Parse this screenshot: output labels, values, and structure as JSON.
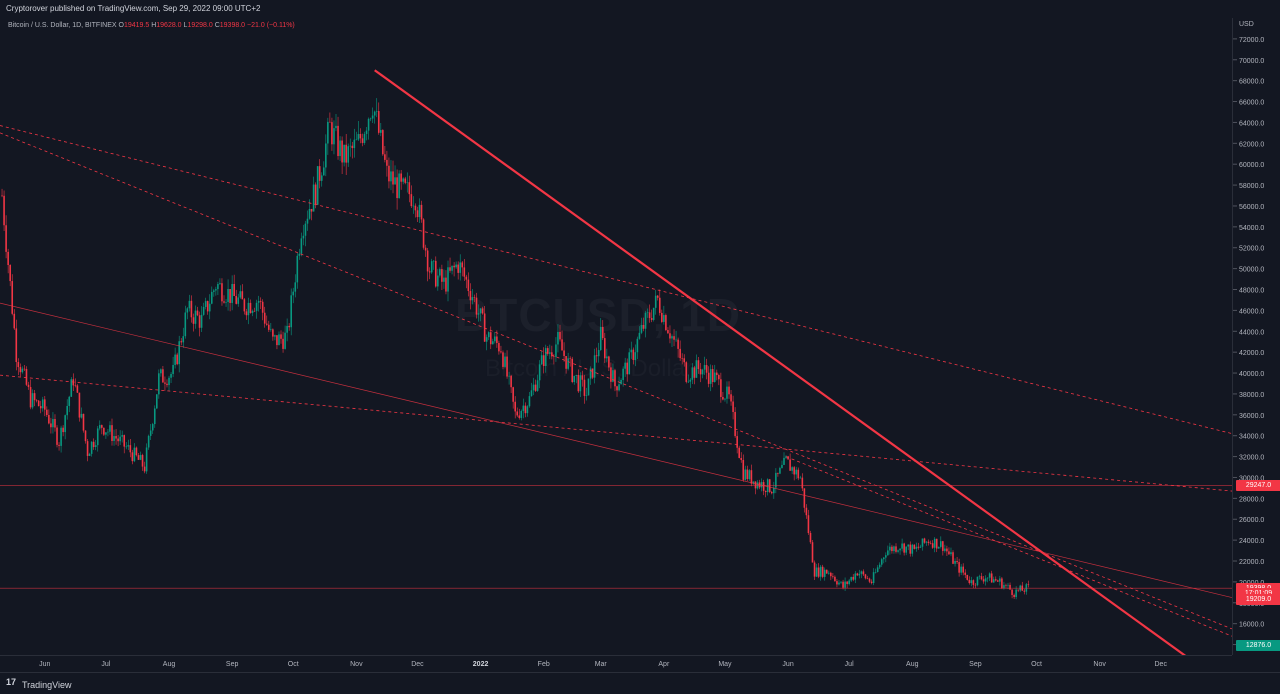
{
  "header": {
    "publisher_line": "Cryptorover published on TradingView.com, Sep 29, 2022 09:00 UTC+2"
  },
  "footer": {
    "brand": "TradingView",
    "logo_glyph": "17"
  },
  "symbol_legend": {
    "name": "Bitcoin / U.S. Dollar, 1D, BITFINEX",
    "open_label": "O",
    "open": "19419.5",
    "high_label": "H",
    "high": "19628.0",
    "low_label": "L",
    "low": "19298.0",
    "close_label": "C",
    "close": "19398.0",
    "change": "−21.0 (−0.11%)"
  },
  "watermark": {
    "symbol": "BTCUSD, 1D",
    "name": "Bitcoin / U.S. Dollar"
  },
  "chart_data": {
    "type": "candlestick",
    "currency": "USD",
    "y_range": [
      13000,
      74000
    ],
    "y_ticks": [
      14000,
      16000,
      18000,
      20000,
      22000,
      24000,
      26000,
      28000,
      30000,
      32000,
      34000,
      36000,
      38000,
      40000,
      42000,
      44000,
      46000,
      48000,
      50000,
      52000,
      54000,
      56000,
      58000,
      60000,
      62000,
      64000,
      66000,
      68000,
      70000,
      72000
    ],
    "x_ticks": [
      "Jun",
      "Jul",
      "Aug",
      "Sep",
      "Oct",
      "Nov",
      "Dec",
      "2022",
      "Feb",
      "Mar",
      "Apr",
      "May",
      "Jun",
      "Jul",
      "Aug",
      "Sep",
      "Oct",
      "Nov",
      "Dec"
    ],
    "x_range": [
      "2021-05-10",
      "2023-01-05"
    ],
    "price_tags": [
      {
        "label": "29247.0",
        "value": 29247,
        "color": "#f23645"
      },
      {
        "label": "19398.0",
        "value": 19398,
        "color": "#f23645"
      },
      {
        "label": "17:01:09",
        "value": 18850,
        "color": "#f23645"
      },
      {
        "label": "19209.0",
        "value": 18300,
        "color": "#f23645"
      },
      {
        "label": "12876.0",
        "value": 13900,
        "color": "#089981"
      }
    ],
    "series_colors": {
      "up": "#089981",
      "down": "#f23645"
    },
    "weekly_closes": [
      [
        "2021-05-11",
        57000
      ],
      [
        "2021-05-18",
        42000
      ],
      [
        "2021-05-25",
        37500
      ],
      [
        "2021-06-01",
        36500
      ],
      [
        "2021-06-08",
        33500
      ],
      [
        "2021-06-15",
        39500
      ],
      [
        "2021-06-22",
        32500
      ],
      [
        "2021-06-29",
        35000
      ],
      [
        "2021-07-06",
        33800
      ],
      [
        "2021-07-13",
        32500
      ],
      [
        "2021-07-20",
        31000
      ],
      [
        "2021-07-27",
        39500
      ],
      [
        "2021-08-03",
        40000
      ],
      [
        "2021-08-10",
        46000
      ],
      [
        "2021-08-17",
        45000
      ],
      [
        "2021-08-24",
        48500
      ],
      [
        "2021-08-31",
        47500
      ],
      [
        "2021-09-07",
        46500
      ],
      [
        "2021-09-14",
        47000
      ],
      [
        "2021-09-21",
        43000
      ],
      [
        "2021-09-28",
        43500
      ],
      [
        "2021-10-05",
        54000
      ],
      [
        "2021-10-12",
        57500
      ],
      [
        "2021-10-19",
        63500
      ],
      [
        "2021-10-26",
        60500
      ],
      [
        "2021-11-02",
        62000
      ],
      [
        "2021-11-09",
        66000
      ],
      [
        "2021-11-16",
        59000
      ],
      [
        "2021-11-23",
        57500
      ],
      [
        "2021-11-30",
        57000
      ],
      [
        "2021-12-07",
        50000
      ],
      [
        "2021-12-14",
        48500
      ],
      [
        "2021-12-21",
        50500
      ],
      [
        "2021-12-28",
        47500
      ],
      [
        "2022-01-04",
        43500
      ],
      [
        "2022-01-11",
        42500
      ],
      [
        "2022-01-18",
        36000
      ],
      [
        "2022-01-25",
        37500
      ],
      [
        "2022-02-01",
        41500
      ],
      [
        "2022-02-08",
        43000
      ],
      [
        "2022-02-15",
        40000
      ],
      [
        "2022-02-22",
        38000
      ],
      [
        "2022-03-01",
        43500
      ],
      [
        "2022-03-08",
        38800
      ],
      [
        "2022-03-15",
        41000
      ],
      [
        "2022-03-22",
        44500
      ],
      [
        "2022-03-29",
        47000
      ],
      [
        "2022-04-05",
        43500
      ],
      [
        "2022-04-12",
        40000
      ],
      [
        "2022-04-19",
        40500
      ],
      [
        "2022-04-26",
        39500
      ],
      [
        "2022-05-03",
        37500
      ],
      [
        "2022-05-10",
        30500
      ],
      [
        "2022-05-17",
        29500
      ],
      [
        "2022-05-24",
        29000
      ],
      [
        "2022-05-31",
        31500
      ],
      [
        "2022-06-07",
        30000
      ],
      [
        "2022-06-14",
        21000
      ],
      [
        "2022-06-21",
        21000
      ],
      [
        "2022-06-28",
        19500
      ],
      [
        "2022-07-05",
        21000
      ],
      [
        "2022-07-12",
        20000
      ],
      [
        "2022-07-19",
        23000
      ],
      [
        "2022-07-26",
        23500
      ],
      [
        "2022-08-02",
        23000
      ],
      [
        "2022-08-09",
        24000
      ],
      [
        "2022-08-16",
        23500
      ],
      [
        "2022-08-23",
        21500
      ],
      [
        "2022-08-30",
        20000
      ],
      [
        "2022-09-06",
        20500
      ],
      [
        "2022-09-13",
        20000
      ],
      [
        "2022-09-20",
        19000
      ],
      [
        "2022-09-27",
        19400
      ]
    ],
    "drawn_lines": [
      {
        "style": "solid-thick",
        "color": "#f23645",
        "from": [
          "2021-11-10",
          69000
        ],
        "to": [
          "2022-12-31",
          10400
        ]
      },
      {
        "style": "dashed",
        "color": "#f23645",
        "from": [
          "2021-05-10",
          63700
        ],
        "to": [
          "2023-01-05",
          34200
        ]
      },
      {
        "style": "dashed",
        "color": "#f23645",
        "from": [
          "2021-05-10",
          63000
        ],
        "to": [
          "2023-01-05",
          15500
        ]
      },
      {
        "style": "dashed",
        "color": "#f23645",
        "from": [
          "2021-05-10",
          39800
        ],
        "to": [
          "2023-01-05",
          28700
        ]
      },
      {
        "style": "solid-thin",
        "color": "#f23645",
        "from": [
          "2021-05-10",
          46700
        ],
        "to": [
          "2023-01-05",
          18500
        ]
      },
      {
        "style": "dashed",
        "color": "#f23645",
        "from": [
          "2022-05-31",
          32000
        ],
        "to": [
          "2023-01-05",
          14800
        ]
      },
      {
        "style": "horizontal",
        "color": "#f23645",
        "value": 29247
      },
      {
        "style": "horizontal",
        "color": "#f23645",
        "value": 19400
      }
    ]
  }
}
